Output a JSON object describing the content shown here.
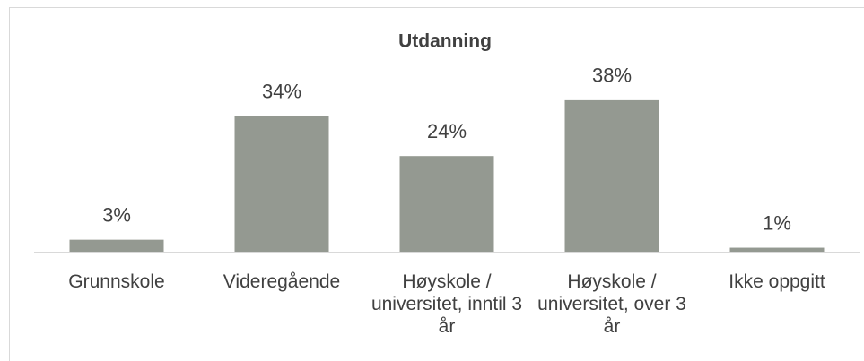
{
  "chart_data": {
    "type": "bar",
    "title": "Utdanning",
    "categories": [
      "Grunnskole",
      "Videregående",
      "Høyskole / universitet, inntil 3 år",
      "Høyskole / universitet, over 3 år",
      "Ikke oppgitt"
    ],
    "values": [
      3,
      34,
      24,
      38,
      1
    ],
    "value_labels": [
      "3%",
      "34%",
      "24%",
      "38%",
      "1%"
    ],
    "color": "#949991"
  }
}
